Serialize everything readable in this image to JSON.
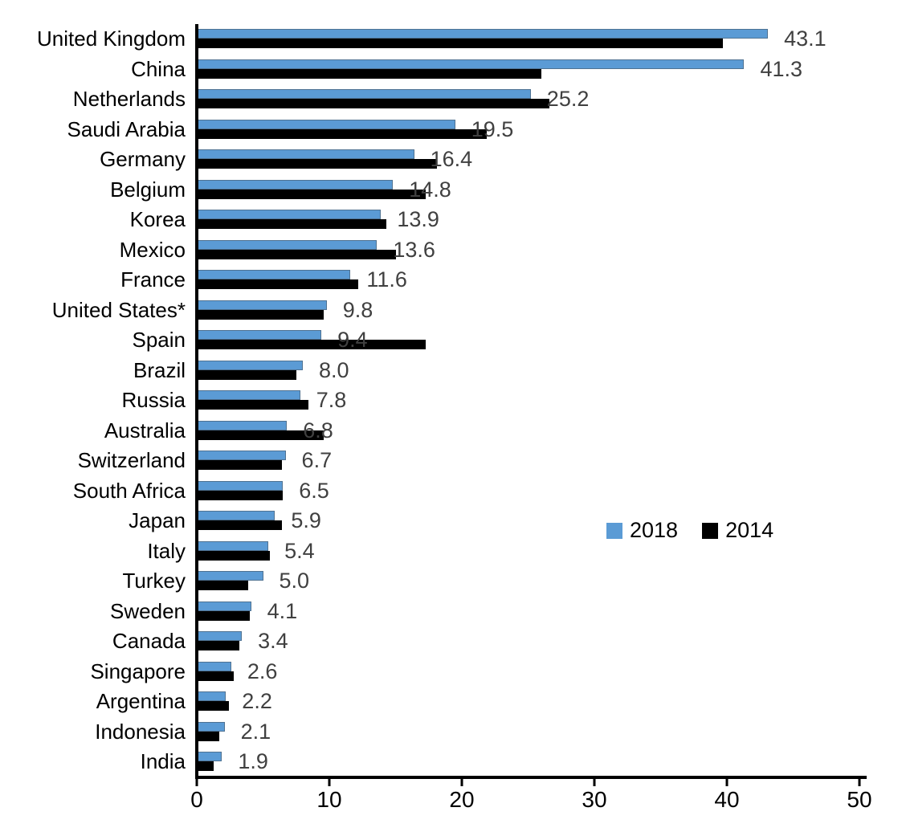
{
  "chart_data": {
    "type": "bar",
    "orientation": "horizontal",
    "title": "",
    "xlabel": "",
    "ylabel": "",
    "grid": false,
    "xlim": [
      0,
      50
    ],
    "xticks": [
      0,
      10,
      20,
      30,
      40,
      50
    ],
    "xtick_labels": [
      "0",
      "10",
      "20",
      "30",
      "40",
      "50"
    ],
    "legend_position": "middle-right",
    "categories": [
      "United Kingdom",
      "China",
      "Netherlands",
      "Saudi Arabia",
      "Germany",
      "Belgium",
      "Korea",
      "Mexico",
      "France",
      "United States*",
      "Spain",
      "Brazil",
      "Russia",
      "Australia",
      "Switzerland",
      "South Africa",
      "Japan",
      "Italy",
      "Turkey",
      "Sweden",
      "Canada",
      "Singapore",
      "Argentina",
      "Indonesia",
      "India"
    ],
    "series": [
      {
        "name": "2018",
        "color": "#5B9BD5",
        "values": [
          43.1,
          41.3,
          25.2,
          19.5,
          16.4,
          14.8,
          13.9,
          13.6,
          11.6,
          9.8,
          9.4,
          8.0,
          7.8,
          6.8,
          6.7,
          6.5,
          5.9,
          5.4,
          5.0,
          4.1,
          3.4,
          2.6,
          2.2,
          2.1,
          1.9
        ]
      },
      {
        "name": "2014",
        "color": "#000000",
        "values": [
          39.7,
          26.0,
          26.6,
          21.9,
          18.1,
          17.3,
          14.3,
          15.0,
          12.2,
          9.6,
          17.3,
          7.5,
          8.4,
          9.6,
          6.4,
          6.5,
          6.4,
          5.5,
          3.9,
          4.0,
          3.2,
          2.8,
          2.4,
          1.7,
          1.3
        ]
      }
    ],
    "value_labels": [
      "43.1",
      "41.3",
      "25.2",
      "19.5",
      "16.4",
      "14.8",
      "13.9",
      "13.6",
      "11.6",
      "9.8",
      "9.4",
      "8.0",
      "7.8",
      "6.8",
      "6.7",
      "6.5",
      "5.9",
      "5.4",
      "5.0",
      "4.1",
      "3.4",
      "2.6",
      "2.2",
      "2.1",
      "1.9"
    ],
    "value_labels_series": "2018"
  },
  "colors": {
    "bar_2018": "#5B9BD5",
    "bar_2014": "#000000",
    "value_label": "#404040",
    "axis": "#000000",
    "category_label": "#000000",
    "background": "#ffffff"
  }
}
